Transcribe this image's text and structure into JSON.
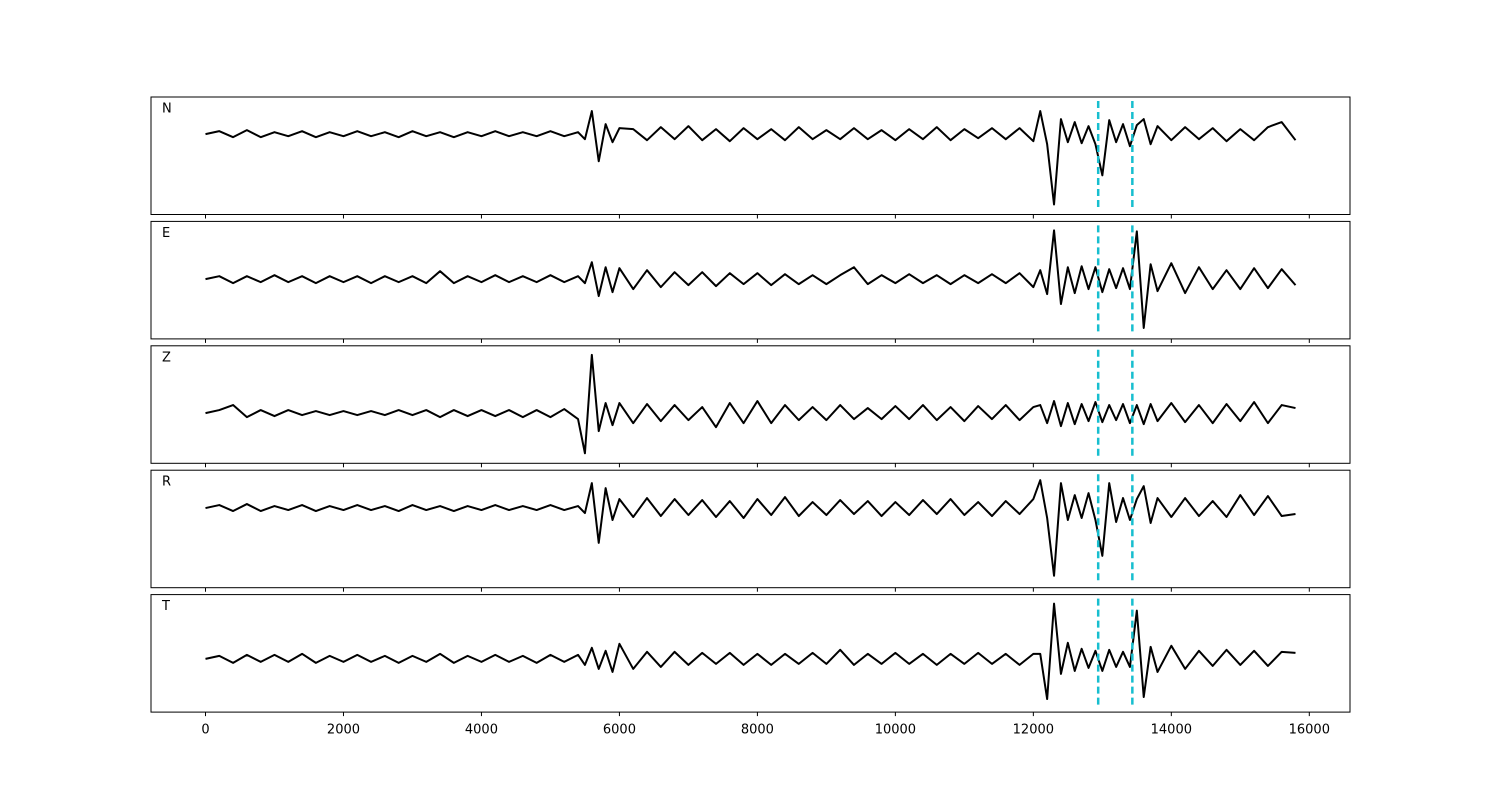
{
  "chart_data": {
    "type": "line",
    "subplots": true,
    "x": [
      0,
      200,
      400,
      600,
      800,
      1000,
      1200,
      1400,
      1600,
      1800,
      2000,
      2200,
      2400,
      2600,
      2800,
      3000,
      3200,
      3400,
      3600,
      3800,
      4000,
      4200,
      4400,
      4600,
      4800,
      5000,
      5200,
      5400,
      5500,
      5600,
      5700,
      5800,
      5900,
      6000,
      6200,
      6400,
      6600,
      6800,
      7000,
      7200,
      7400,
      7600,
      7800,
      8000,
      8200,
      8400,
      8600,
      8800,
      9000,
      9200,
      9400,
      9600,
      9800,
      10000,
      10200,
      10400,
      10600,
      10800,
      11000,
      11200,
      11400,
      11600,
      11800,
      12000,
      12100,
      12200,
      12300,
      12400,
      12500,
      12600,
      12700,
      12800,
      12900,
      13000,
      13100,
      13200,
      13300,
      13400,
      13500,
      13600,
      13700,
      13800,
      14000,
      14200,
      14400,
      14600,
      14800,
      15000,
      15200,
      15400,
      15600,
      15800
    ],
    "xlim": [
      -790,
      16590
    ],
    "xticks": [
      0,
      2000,
      4000,
      6000,
      8000,
      10000,
      12000,
      14000,
      16000
    ],
    "vlines": [
      12940,
      13435
    ],
    "vline_color": "#17becf",
    "vline_style": "dashed",
    "series": [
      {
        "name": "N",
        "color": "#000000",
        "ylim": [
          -8,
          3.7
        ],
        "values": [
          0,
          0.3,
          -0.3,
          0.4,
          -0.3,
          0.2,
          -0.2,
          0.3,
          -0.3,
          0.2,
          -0.2,
          0.3,
          -0.2,
          0.2,
          -0.3,
          0.3,
          -0.2,
          0.2,
          -0.3,
          0.2,
          -0.2,
          0.3,
          -0.2,
          0.2,
          -0.2,
          0.3,
          -0.2,
          0.2,
          -0.5,
          2.3,
          -2.7,
          1,
          -0.8,
          0.6,
          0.5,
          -0.6,
          0.7,
          -0.5,
          0.8,
          -0.6,
          0.5,
          -0.7,
          0.6,
          -0.5,
          0.5,
          -0.6,
          0.7,
          -0.5,
          0.4,
          -0.5,
          0.6,
          -0.5,
          0.4,
          -0.6,
          0.5,
          -0.5,
          0.7,
          -0.6,
          0.5,
          -0.4,
          0.6,
          -0.5,
          0.6,
          -0.7,
          2.3,
          -1,
          -7,
          1.5,
          -0.8,
          1.2,
          -0.9,
          0.8,
          -1,
          -4.1,
          1.4,
          -0.8,
          1,
          -1.2,
          0.9,
          1.5,
          -1,
          0.8,
          -0.6,
          0.7,
          -0.5,
          0.6,
          -0.7,
          0.5,
          -0.6,
          0.7,
          1.2,
          -0.6
        ]
      },
      {
        "name": "E",
        "color": "#000000",
        "ylim": [
          -6,
          5.8
        ],
        "values": [
          0,
          0.3,
          -0.4,
          0.3,
          -0.3,
          0.4,
          -0.3,
          0.3,
          -0.4,
          0.3,
          -0.3,
          0.3,
          -0.4,
          0.3,
          -0.3,
          0.3,
          -0.4,
          0.8,
          -0.4,
          0.3,
          -0.3,
          0.4,
          -0.3,
          0.3,
          -0.3,
          0.4,
          -0.3,
          0.3,
          -0.4,
          1.7,
          -1.7,
          1.2,
          -1.3,
          1.1,
          -1,
          0.9,
          -0.8,
          0.7,
          -0.6,
          0.7,
          -0.7,
          0.6,
          -0.5,
          0.6,
          -0.6,
          0.5,
          -0.5,
          0.4,
          -0.5,
          0.4,
          1.2,
          -0.5,
          0.4,
          -0.4,
          0.5,
          -0.4,
          0.4,
          -0.5,
          0.4,
          -0.4,
          0.5,
          -0.4,
          0.6,
          -0.8,
          0.9,
          -1.5,
          4.9,
          -2.5,
          1.2,
          -1.4,
          1.3,
          -1,
          1.2,
          -1.3,
          1,
          -0.9,
          1.1,
          -1,
          4.8,
          -4.9,
          1.5,
          -1.2,
          1.6,
          -1.4,
          1.2,
          -1,
          0.9,
          -1,
          1.1,
          -0.9,
          1,
          -0.6
        ]
      },
      {
        "name": "Z",
        "color": "#000000",
        "ylim": [
          -5,
          6.7
        ],
        "values": [
          0,
          0.3,
          0.8,
          -0.4,
          0.3,
          -0.3,
          0.3,
          -0.2,
          0.2,
          -0.2,
          0.2,
          -0.2,
          0.2,
          -0.2,
          0.3,
          -0.2,
          0.3,
          -0.4,
          0.3,
          -0.3,
          0.3,
          -0.3,
          0.3,
          -0.4,
          0.3,
          -0.4,
          0.4,
          -0.6,
          -4,
          5.8,
          -1.8,
          1,
          -1.2,
          1,
          -1,
          0.9,
          -0.8,
          0.8,
          -0.7,
          0.6,
          -1.4,
          1,
          -1,
          1.2,
          -1,
          0.8,
          -0.7,
          0.6,
          -0.7,
          0.8,
          -0.6,
          0.5,
          -0.6,
          0.7,
          -0.6,
          0.8,
          -0.7,
          0.6,
          -0.8,
          0.7,
          -0.6,
          0.8,
          -0.7,
          0.6,
          0.8,
          -1,
          1.2,
          -1.3,
          1,
          -1.1,
          0.9,
          -0.8,
          1.1,
          -0.9,
          0.8,
          -0.7,
          0.9,
          -1,
          0.8,
          -1.1,
          0.9,
          -0.8,
          1,
          -0.9,
          0.8,
          -1,
          0.9,
          -0.8,
          1.1,
          -1,
          0.8,
          0.5
        ]
      },
      {
        "name": "R",
        "color": "#000000",
        "ylim": [
          -8,
          3.8
        ],
        "values": [
          0,
          0.3,
          -0.3,
          0.4,
          -0.3,
          0.2,
          -0.2,
          0.3,
          -0.3,
          0.2,
          -0.2,
          0.3,
          -0.2,
          0.2,
          -0.3,
          0.3,
          -0.2,
          0.2,
          -0.3,
          0.2,
          -0.2,
          0.3,
          -0.2,
          0.2,
          -0.2,
          0.3,
          -0.2,
          0.2,
          -0.5,
          2.5,
          -3.5,
          2,
          -1.2,
          0.9,
          -0.9,
          1,
          -0.8,
          0.9,
          -0.7,
          0.8,
          -0.9,
          0.7,
          -1,
          0.9,
          -0.7,
          1.1,
          -0.8,
          0.6,
          -0.7,
          0.8,
          -0.6,
          0.7,
          -0.8,
          0.6,
          -0.7,
          0.8,
          -0.6,
          0.9,
          -0.7,
          0.6,
          -0.8,
          0.7,
          -0.6,
          0.9,
          2.8,
          -1,
          -6.8,
          2.5,
          -1.2,
          1.3,
          -1,
          1.5,
          -1.2,
          -4.8,
          2.5,
          -1.4,
          1,
          -1.2,
          0.9,
          2.2,
          -1.5,
          1,
          -0.9,
          1,
          -0.8,
          0.7,
          -0.9,
          1.3,
          -0.7,
          1.2,
          -0.8,
          -0.6
        ]
      },
      {
        "name": "T",
        "color": "#000000",
        "ylim": [
          -5.3,
          6.4
        ],
        "values": [
          0,
          0.3,
          -0.4,
          0.4,
          -0.3,
          0.4,
          -0.3,
          0.5,
          -0.4,
          0.3,
          -0.3,
          0.4,
          -0.3,
          0.3,
          -0.4,
          0.3,
          -0.3,
          0.5,
          -0.4,
          0.3,
          -0.3,
          0.4,
          -0.3,
          0.3,
          -0.4,
          0.4,
          -0.3,
          0.4,
          -0.6,
          1.1,
          -1,
          0.8,
          -1.3,
          1.5,
          -1,
          0.7,
          -0.8,
          0.7,
          -0.6,
          0.6,
          -0.5,
          0.6,
          -0.6,
          0.5,
          -0.6,
          0.5,
          -0.5,
          0.6,
          -0.5,
          0.9,
          -0.6,
          0.5,
          -0.5,
          0.6,
          -0.5,
          0.5,
          -0.6,
          0.5,
          -0.5,
          0.6,
          -0.5,
          0.5,
          -0.6,
          0.5,
          0.5,
          -4,
          5.5,
          -1.5,
          1.6,
          -1.2,
          1,
          -0.9,
          0.8,
          -1.2,
          0.9,
          -0.8,
          0.7,
          -0.8,
          4.8,
          -3.8,
          1.2,
          -1.3,
          1.3,
          -1,
          0.8,
          -0.7,
          0.9,
          -0.6,
          0.8,
          -0.7,
          0.7,
          0.6
        ]
      }
    ]
  }
}
